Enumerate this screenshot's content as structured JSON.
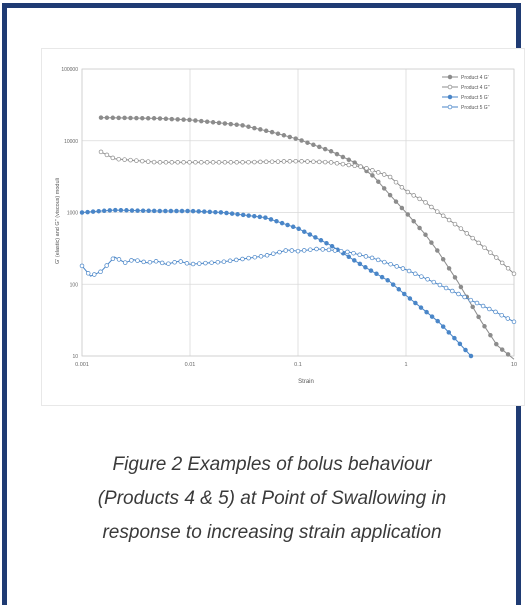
{
  "caption": {
    "line1": "Figure 2 Examples of bolus behaviour",
    "line2": "(Products 4 & 5)  at Point of Swallowing in",
    "line3": "response to increasing strain application"
  },
  "chart_data": {
    "type": "line",
    "xscale": "log",
    "yscale": "log",
    "xlim": [
      0.001,
      10
    ],
    "ylim": [
      10,
      100000
    ],
    "xlabel": "Strain",
    "ylabel": "G' (elastic) and G'' (viscous) moduli",
    "x_ticks": [
      "0.001",
      "0.01",
      "0.1",
      "1",
      "10"
    ],
    "y_ticks": [
      "10",
      "100",
      "1000",
      "10000",
      "100000"
    ],
    "grid": true,
    "legend_position": "top-right",
    "colors": {
      "gray": "#8c8c8c",
      "blue": "#4a86c8"
    },
    "series": [
      {
        "name": "Product 4 G'",
        "color": "#8c8c8c",
        "filled": true,
        "points": [
          [
            0.0015,
            21000
          ],
          [
            0.005,
            20500
          ],
          [
            0.01,
            19500
          ],
          [
            0.03,
            16500
          ],
          [
            0.06,
            13000
          ],
          [
            0.1,
            10500
          ],
          [
            0.2,
            7200
          ],
          [
            0.35,
            4800
          ],
          [
            0.5,
            3200
          ],
          [
            0.7,
            1800
          ],
          [
            1,
            1000
          ],
          [
            1.5,
            500
          ],
          [
            2,
            280
          ],
          [
            3,
            110
          ],
          [
            5,
            30
          ],
          [
            7,
            14
          ],
          [
            10,
            9
          ]
        ]
      },
      {
        "name": "Product 4 G''",
        "color": "#8c8c8c",
        "filled": false,
        "points": [
          [
            0.0015,
            7000
          ],
          [
            0.002,
            5600
          ],
          [
            0.005,
            5000
          ],
          [
            0.01,
            5000
          ],
          [
            0.03,
            5000
          ],
          [
            0.1,
            5200
          ],
          [
            0.2,
            5000
          ],
          [
            0.4,
            4300
          ],
          [
            0.7,
            3200
          ],
          [
            1,
            2000
          ],
          [
            1.5,
            1400
          ],
          [
            2,
            1000
          ],
          [
            3,
            650
          ],
          [
            5,
            350
          ],
          [
            7,
            230
          ],
          [
            10,
            140
          ]
        ]
      },
      {
        "name": "Product 5 G'",
        "color": "#4a86c8",
        "filled": true,
        "points": [
          [
            0.001,
            1000
          ],
          [
            0.0015,
            1050
          ],
          [
            0.002,
            1080
          ],
          [
            0.005,
            1050
          ],
          [
            0.01,
            1050
          ],
          [
            0.02,
            1000
          ],
          [
            0.05,
            850
          ],
          [
            0.1,
            600
          ],
          [
            0.2,
            350
          ],
          [
            0.4,
            180
          ],
          [
            0.7,
            110
          ],
          [
            1,
            70
          ],
          [
            2,
            30
          ],
          [
            3,
            16
          ],
          [
            4,
            10
          ]
        ]
      },
      {
        "name": "Product 5 G''",
        "color": "#4a86c8",
        "filled": false,
        "points": [
          [
            0.001,
            180
          ],
          [
            0.0012,
            130
          ],
          [
            0.0015,
            150
          ],
          [
            0.002,
            240
          ],
          [
            0.0025,
            200
          ],
          [
            0.003,
            220
          ],
          [
            0.004,
            200
          ],
          [
            0.005,
            210
          ],
          [
            0.006,
            190
          ],
          [
            0.008,
            210
          ],
          [
            0.01,
            190
          ],
          [
            0.02,
            205
          ],
          [
            0.05,
            250
          ],
          [
            0.08,
            300
          ],
          [
            0.1,
            290
          ],
          [
            0.15,
            310
          ],
          [
            0.2,
            300
          ],
          [
            0.3,
            280
          ],
          [
            0.5,
            230
          ],
          [
            1,
            160
          ],
          [
            2,
            100
          ],
          [
            4,
            60
          ],
          [
            7,
            40
          ],
          [
            10,
            30
          ]
        ]
      }
    ]
  }
}
